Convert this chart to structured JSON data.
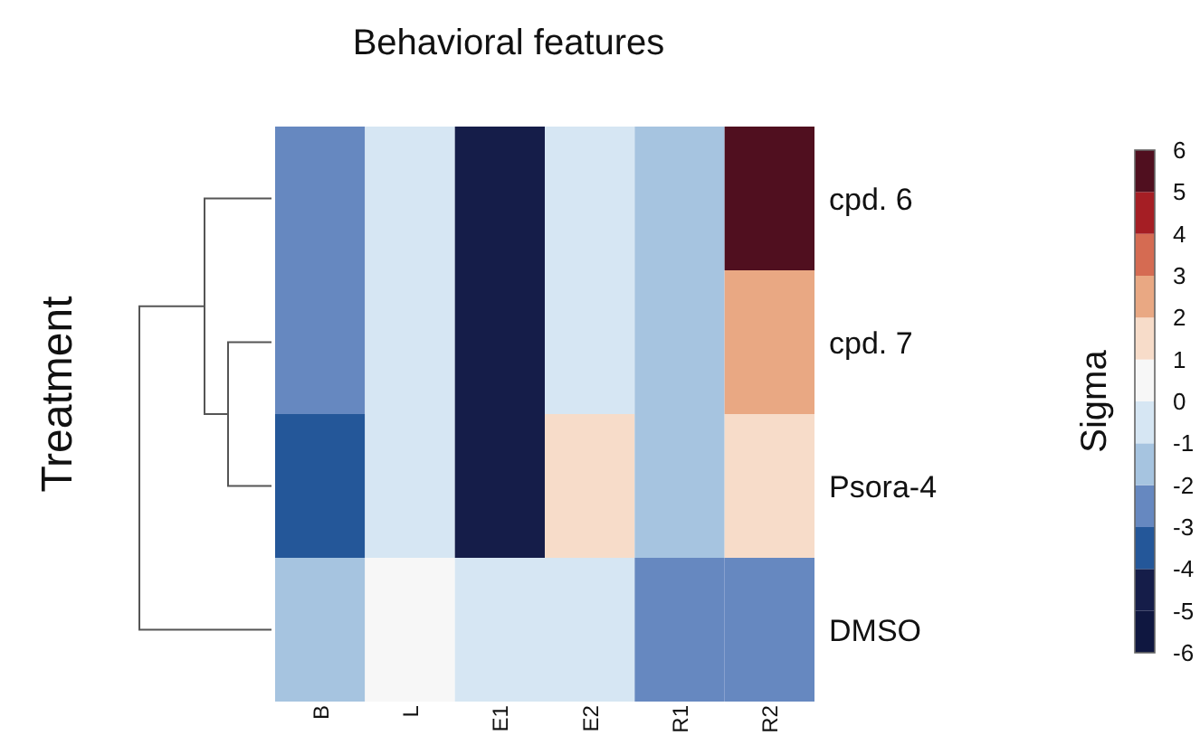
{
  "chart_data": {
    "type": "heatmap",
    "title": "Behavioral features",
    "ylabel": "Treatment",
    "clabel": "Sigma",
    "categories": [
      "B",
      "L",
      "E1",
      "E2",
      "R1",
      "R2"
    ],
    "y_categories": [
      "cpd. 6",
      "cpd. 7",
      "Psora-4",
      "DMSO"
    ],
    "cells": [
      [
        -2.5,
        -0.5,
        -4.5,
        -0.5,
        -1.5,
        5.5
      ],
      [
        -2.5,
        -0.5,
        -4.5,
        -0.5,
        -1.5,
        2.5
      ],
      [
        -3.5,
        -0.5,
        -4.5,
        1.5,
        -1.5,
        1.5
      ],
      [
        -1.5,
        0.5,
        -0.5,
        -0.5,
        -2.5,
        -2.5
      ]
    ],
    "clim": [
      -6,
      6
    ],
    "cticks": [
      -6,
      -5,
      -4,
      -3,
      -2,
      -1,
      0,
      1,
      2,
      3,
      4,
      5,
      6
    ]
  }
}
